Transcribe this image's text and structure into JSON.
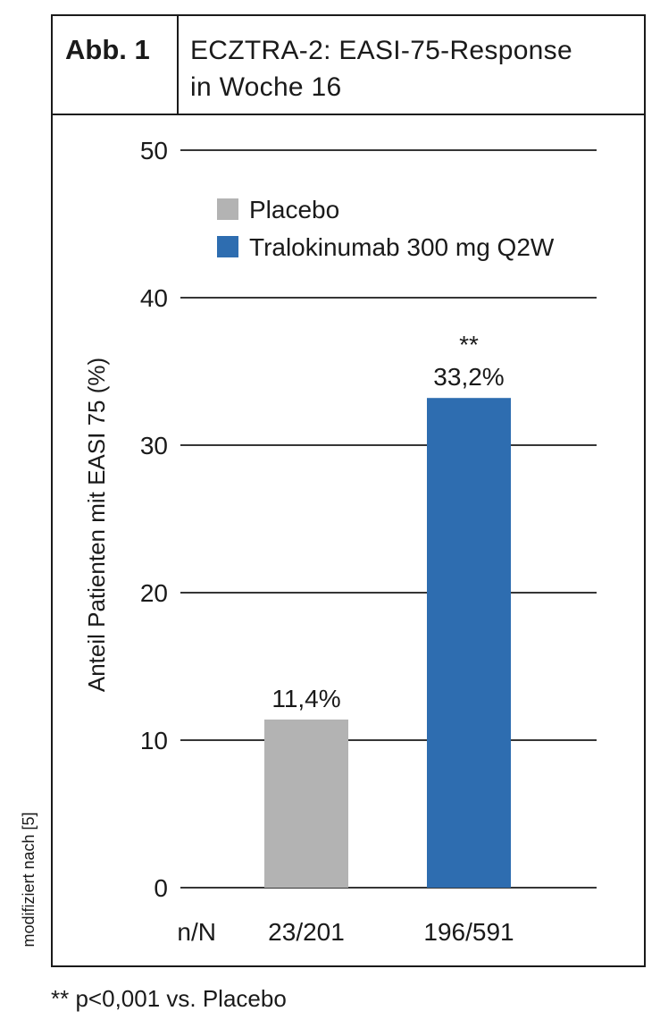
{
  "header": {
    "figure_number": "Abb. 1",
    "title_line1": "ECZTRA-2: EASI-75-Response",
    "title_line2": "in Woche 16"
  },
  "source_note": "modifiziert nach [5]",
  "footnote": "** p<0,001 vs. Placebo",
  "colors": {
    "placebo": "#b3b3b3",
    "tralokinumab": "#2e6db0"
  },
  "chart_data": {
    "type": "bar",
    "categories": [
      "23/201",
      "196/591"
    ],
    "category_axis_label": "n/N",
    "series": [
      {
        "name": "Placebo",
        "values": [
          11.4,
          null
        ],
        "color": "#b3b3b3"
      },
      {
        "name": "Tralokinumab 300 mg Q2W",
        "values": [
          null,
          33.2
        ],
        "color": "#2e6db0"
      }
    ],
    "data_labels": [
      "11,4%",
      "33,2%"
    ],
    "significance": [
      "",
      "**"
    ],
    "ylabel": "Anteil Patienten mit EASI 75 (%)",
    "ylim": [
      0,
      50
    ],
    "yticks": [
      0,
      10,
      20,
      30,
      40,
      50
    ],
    "grid": true,
    "legend_position": "top"
  }
}
